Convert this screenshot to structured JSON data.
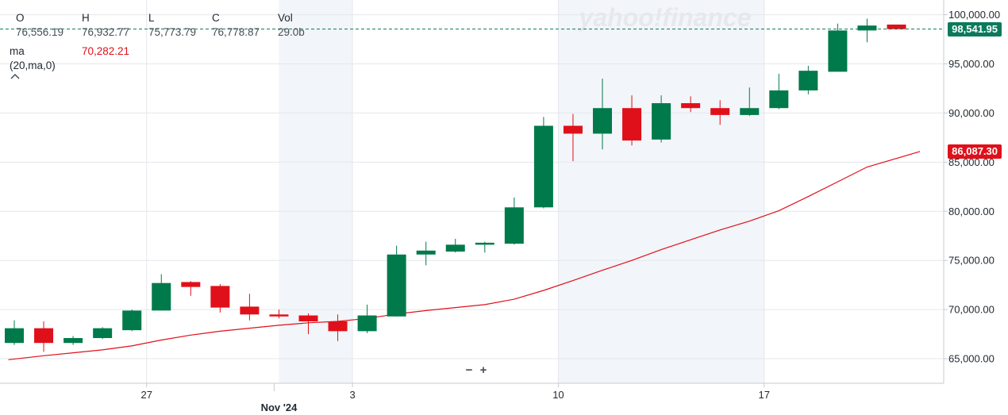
{
  "legend": {
    "o_label": "O",
    "o_value": "76,556.19",
    "h_label": "H",
    "h_value": "76,932.77",
    "l_label": "L",
    "l_value": "75,773.79",
    "c_label": "C",
    "c_value": "76,778.87",
    "vol_label": "Vol",
    "vol_value": "29.0b",
    "ma_label": "ma",
    "ma_value": "70,282.21",
    "ma_params": "(20,ma,0)",
    "collapse_icon": "chevron-up-icon"
  },
  "watermark": "yahoo!finance",
  "zoom": {
    "minus": "−",
    "plus": "+"
  },
  "price_tag": "98,541.95",
  "ma_tag": "86,087.30",
  "colors": {
    "up": "#007a4a",
    "down": "#e0101a",
    "ma": "#e0101a",
    "price_line": "#0b7a5c",
    "shade": "#f2f5f9"
  },
  "chart_data": {
    "type": "candlestick",
    "y_range": [
      62500,
      101500
    ],
    "y_ticks": [
      65000,
      70000,
      75000,
      80000,
      85000,
      90000,
      95000,
      100000
    ],
    "y_tick_labels": [
      "65,000.00",
      "70,000.00",
      "75,000.00",
      "80,000.00",
      "85,000.00",
      "90,000.00",
      "95,000.00",
      "100,000.00"
    ],
    "x_tick_labels": [
      {
        "index": 4.5,
        "label": "27"
      },
      {
        "index": 11.5,
        "label": "3"
      },
      {
        "index": 18.5,
        "label": "10"
      },
      {
        "index": 25.5,
        "label": "17"
      }
    ],
    "x_tick_sublabel": {
      "index": 9,
      "label": "Nov '24"
    },
    "shaded_ranges": [
      [
        9,
        11.5
      ],
      [
        18.5,
        25.5
      ]
    ],
    "candles": [
      {
        "o": 66600,
        "h": 68900,
        "l": 66400,
        "c": 68100
      },
      {
        "o": 68100,
        "h": 68800,
        "l": 65700,
        "c": 66600
      },
      {
        "o": 66600,
        "h": 67300,
        "l": 66400,
        "c": 67100
      },
      {
        "o": 67100,
        "h": 68200,
        "l": 67000,
        "c": 68100
      },
      {
        "o": 67900,
        "h": 70000,
        "l": 67800,
        "c": 69900
      },
      {
        "o": 69900,
        "h": 73600,
        "l": 69900,
        "c": 72700
      },
      {
        "o": 72800,
        "h": 72900,
        "l": 71400,
        "c": 72300
      },
      {
        "o": 72400,
        "h": 72600,
        "l": 69700,
        "c": 70200
      },
      {
        "o": 70300,
        "h": 71600,
        "l": 68900,
        "c": 69500
      },
      {
        "o": 69500,
        "h": 70000,
        "l": 69100,
        "c": 69300
      },
      {
        "o": 69400,
        "h": 69600,
        "l": 67500,
        "c": 68800
      },
      {
        "o": 68800,
        "h": 69500,
        "l": 66800,
        "c": 67800
      },
      {
        "o": 67800,
        "h": 70500,
        "l": 67600,
        "c": 69400
      },
      {
        "o": 69300,
        "h": 76500,
        "l": 69300,
        "c": 75600
      },
      {
        "o": 75600,
        "h": 76900,
        "l": 74500,
        "c": 76000
      },
      {
        "o": 75900,
        "h": 77200,
        "l": 75800,
        "c": 76600
      },
      {
        "o": 76600,
        "h": 76900,
        "l": 75800,
        "c": 76800
      },
      {
        "o": 76700,
        "h": 81400,
        "l": 76600,
        "c": 80400
      },
      {
        "o": 80400,
        "h": 89600,
        "l": 80300,
        "c": 88700
      },
      {
        "o": 88700,
        "h": 89900,
        "l": 85100,
        "c": 87900
      },
      {
        "o": 87900,
        "h": 93500,
        "l": 86300,
        "c": 90500
      },
      {
        "o": 90500,
        "h": 91800,
        "l": 86700,
        "c": 87200
      },
      {
        "o": 87300,
        "h": 91800,
        "l": 87000,
        "c": 91000
      },
      {
        "o": 91000,
        "h": 91700,
        "l": 90100,
        "c": 90500
      },
      {
        "o": 90500,
        "h": 91300,
        "l": 88800,
        "c": 89800
      },
      {
        "o": 89800,
        "h": 92600,
        "l": 89700,
        "c": 90500
      },
      {
        "o": 90500,
        "h": 94000,
        "l": 90400,
        "c": 92300
      },
      {
        "o": 92300,
        "h": 94800,
        "l": 91900,
        "c": 94300
      },
      {
        "o": 94200,
        "h": 99100,
        "l": 94200,
        "c": 98400
      },
      {
        "o": 98400,
        "h": 99600,
        "l": 97200,
        "c": 98900
      },
      {
        "o": 99000,
        "h": 99000,
        "l": 98500,
        "c": 98541.95
      }
    ],
    "ma_series": {
      "name": "ma",
      "x": [
        -0.2,
        1,
        2,
        3,
        4,
        5,
        6,
        7,
        8,
        9,
        10,
        11,
        12,
        13,
        14,
        15,
        16,
        17,
        18,
        19,
        20,
        21,
        22,
        23,
        24,
        25,
        26,
        27,
        28,
        29,
        30.8
      ],
      "values": [
        64900,
        65300,
        65600,
        65900,
        66300,
        66900,
        67400,
        67800,
        68100,
        68400,
        68650,
        68800,
        69100,
        69550,
        69900,
        70200,
        70500,
        71050,
        71950,
        72950,
        74000,
        75000,
        76100,
        77100,
        78100,
        79000,
        80050,
        81500,
        83000,
        84500,
        86087.3
      ]
    },
    "last_price": 98541.95
  }
}
